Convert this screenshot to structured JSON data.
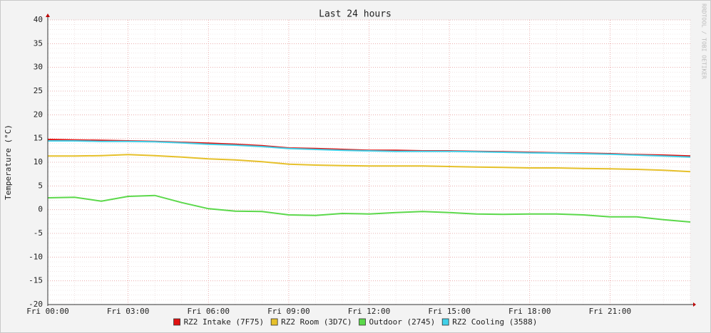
{
  "chart_data": {
    "type": "line",
    "title": "Last 24 hours",
    "ylabel": "Temperature (°C)",
    "side_text": "RRDTOOL / TOBI OETIKER",
    "x": [
      0,
      1,
      2,
      3,
      4,
      5,
      6,
      7,
      8,
      9,
      10,
      11,
      12,
      13,
      14,
      15,
      16,
      17,
      18,
      19,
      20,
      21,
      22,
      23,
      24
    ],
    "series": [
      {
        "name": "RZ2 Intake (7F75)",
        "color": "#e01010",
        "values": [
          14.8,
          14.7,
          14.6,
          14.5,
          14.4,
          14.2,
          14.0,
          13.8,
          13.5,
          13.0,
          12.9,
          12.7,
          12.5,
          12.5,
          12.4,
          12.4,
          12.3,
          12.2,
          12.1,
          12.0,
          11.9,
          11.8,
          11.6,
          11.5,
          11.3
        ]
      },
      {
        "name": "RZ2 Room (3D7C)",
        "color": "#e6c02a",
        "values": [
          11.3,
          11.3,
          11.4,
          11.6,
          11.4,
          11.1,
          10.7,
          10.5,
          10.1,
          9.6,
          9.4,
          9.3,
          9.2,
          9.2,
          9.2,
          9.1,
          9.0,
          8.9,
          8.8,
          8.8,
          8.7,
          8.6,
          8.5,
          8.3,
          8.0
        ]
      },
      {
        "name": "Outdoor (2745)",
        "color": "#5bd84a",
        "values": [
          2.5,
          2.6,
          1.8,
          2.8,
          3.0,
          1.5,
          0.2,
          -0.3,
          -0.4,
          -1.1,
          -1.2,
          -0.8,
          -0.9,
          -0.6,
          -0.4,
          -0.6,
          -0.9,
          -1.0,
          -0.9,
          -0.9,
          -1.1,
          -1.5,
          -1.5,
          -2.1,
          -2.6
        ]
      },
      {
        "name": "RZ2 Cooling (3588)",
        "color": "#40d0e8",
        "values": [
          14.5,
          14.5,
          14.4,
          14.4,
          14.3,
          14.1,
          13.8,
          13.6,
          13.3,
          12.9,
          12.7,
          12.5,
          12.4,
          12.3,
          12.3,
          12.3,
          12.2,
          12.1,
          12.0,
          11.9,
          11.8,
          11.7,
          11.5,
          11.3,
          11.1
        ]
      }
    ],
    "xlim": [
      0,
      24
    ],
    "xticks": [
      {
        "value": 0,
        "label": "Fri 00:00"
      },
      {
        "value": 3,
        "label": "Fri 03:00"
      },
      {
        "value": 6,
        "label": "Fri 06:00"
      },
      {
        "value": 9,
        "label": "Fri 09:00"
      },
      {
        "value": 12,
        "label": "Fri 12:00"
      },
      {
        "value": 15,
        "label": "Fri 15:00"
      },
      {
        "value": 18,
        "label": "Fri 18:00"
      },
      {
        "value": 21,
        "label": "Fri 21:00"
      }
    ],
    "ylim": [
      -20,
      40
    ],
    "yticks": [
      -20,
      -15,
      -10,
      -5,
      0,
      5,
      10,
      15,
      20,
      25,
      30,
      35,
      40
    ],
    "grid": true,
    "legend": "bottom"
  }
}
